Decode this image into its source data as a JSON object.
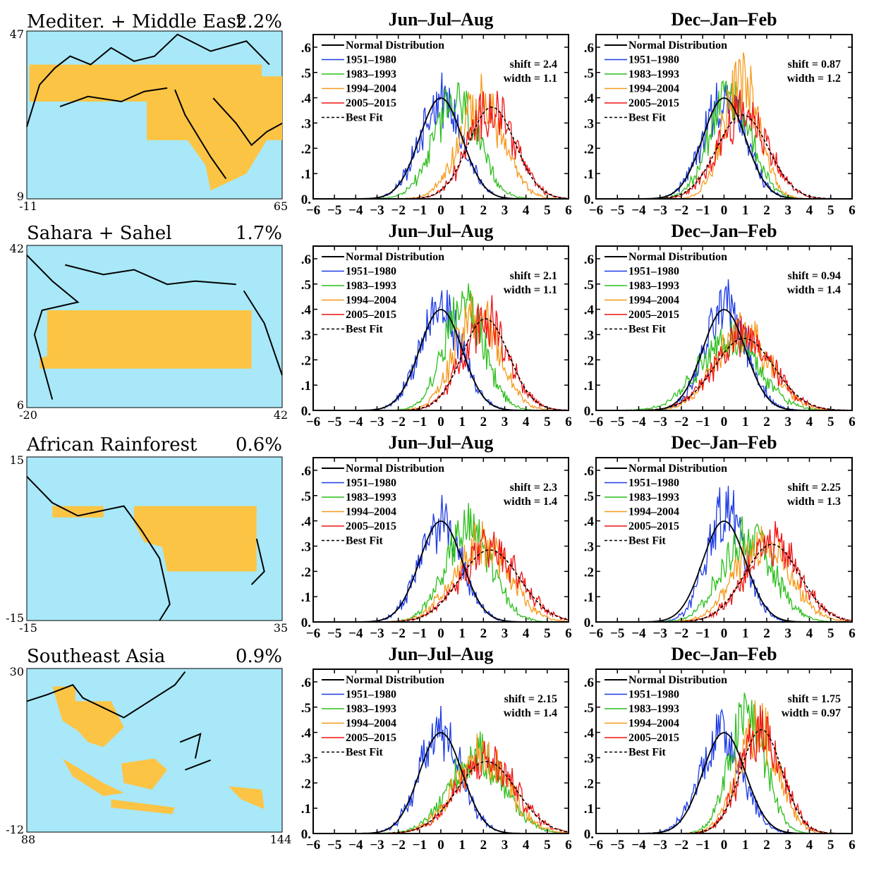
{
  "figure": {
    "colors": {
      "ocean": "#a8e8f8",
      "land_region": "#fcc444",
      "coast": "#000000",
      "normal": "#000000",
      "p1951": "#1e3ce6",
      "p1983": "#2cbf1c",
      "p1994": "#f59a1c",
      "p2005": "#f01414",
      "bestfit": "#000000"
    },
    "legend": [
      "Normal Distribution",
      "1951–1980",
      "1983–1993",
      "1994–2004",
      "2005–2015",
      "Best Fit"
    ],
    "x_ticks": [
      "−6",
      "−5",
      "−4",
      "−3",
      "−2",
      "−1",
      "0",
      "1",
      "2",
      "3",
      "4",
      "5",
      "6"
    ],
    "y_ticks": [
      "0.",
      ".1",
      ".2",
      ".3",
      ".4",
      ".5",
      ".6"
    ]
  },
  "regions": [
    {
      "name": "Mediter. + Middle East",
      "percent": "2.2%",
      "lat_top": "47",
      "lat_bottom": "9",
      "lon_left": "-11",
      "lon_right": "65",
      "panels": [
        {
          "title": "Jun–Jul–Aug",
          "shift_text": "shift = 2.4",
          "width_text": "width = 1.1"
        },
        {
          "title": "Dec–Jan–Feb",
          "shift_text": "shift = 0.87",
          "width_text": "width = 1.2"
        }
      ]
    },
    {
      "name": "Sahara + Sahel",
      "percent": "1.7%",
      "lat_top": "42",
      "lat_bottom": "6",
      "lon_left": "-20",
      "lon_right": "42",
      "panels": [
        {
          "title": "Jun–Jul–Aug",
          "shift_text": "shift = 2.1",
          "width_text": "width = 1.1"
        },
        {
          "title": "Dec–Jan–Feb",
          "shift_text": "shift = 0.94",
          "width_text": "width = 1.4"
        }
      ]
    },
    {
      "name": "African Rainforest",
      "percent": "0.6%",
      "lat_top": "15",
      "lat_bottom": "-15",
      "lon_left": "-15",
      "lon_right": "35",
      "panels": [
        {
          "title": "Jun–Jul–Aug",
          "shift_text": "shift = 2.3",
          "width_text": "width = 1.4"
        },
        {
          "title": "Dec–Jan–Feb",
          "shift_text": "shift = 2.25",
          "width_text": "width = 1.3"
        }
      ]
    },
    {
      "name": "Southeast Asia",
      "percent": "0.9%",
      "lat_top": "30",
      "lat_bottom": "-12",
      "lon_left": "88",
      "lon_right": "144",
      "panels": [
        {
          "title": "Jun–Jul–Aug",
          "shift_text": "shift = 2.15",
          "width_text": "width = 1.4"
        },
        {
          "title": "Dec–Jan–Feb",
          "shift_text": "shift = 1.75",
          "width_text": "width = 0.97"
        }
      ]
    }
  ],
  "chart_data": [
    {
      "type": "line",
      "region": "Mediter. + Middle East",
      "season": "Jun–Jul–Aug",
      "xlim": [
        -6,
        6
      ],
      "ylim": [
        0,
        0.65
      ],
      "series": [
        {
          "name": "Normal Distribution",
          "mean": 0,
          "sd": 1
        },
        {
          "name": "1951–1980",
          "mean": 0,
          "sd": 1
        },
        {
          "name": "1983–1993",
          "mean": 0.7,
          "sd": 1.05
        },
        {
          "name": "1994–2004",
          "mean": 1.9,
          "sd": 1.05
        },
        {
          "name": "2005–2015",
          "mean": 2.4,
          "sd": 1.1
        },
        {
          "name": "Best Fit",
          "mean": 2.4,
          "sd": 1.1
        }
      ]
    },
    {
      "type": "line",
      "region": "Mediter. + Middle East",
      "season": "Dec–Jan–Feb",
      "xlim": [
        -6,
        6
      ],
      "ylim": [
        0,
        0.65
      ],
      "series": [
        {
          "name": "Normal Distribution",
          "mean": 0,
          "sd": 1
        },
        {
          "name": "1951–1980",
          "mean": 0,
          "sd": 1
        },
        {
          "name": "1983–1993",
          "mean": 0.3,
          "sd": 1.0
        },
        {
          "name": "1994–2004",
          "mean": 0.8,
          "sd": 0.85
        },
        {
          "name": "2005–2015",
          "mean": 0.9,
          "sd": 1.15
        },
        {
          "name": "Best Fit",
          "mean": 0.87,
          "sd": 1.2
        }
      ]
    },
    {
      "type": "line",
      "region": "Sahara + Sahel",
      "season": "Jun–Jul–Aug",
      "xlim": [
        -6,
        6
      ],
      "ylim": [
        0,
        0.65
      ],
      "series": [
        {
          "name": "Normal Distribution",
          "mean": 0,
          "sd": 1
        },
        {
          "name": "1951–1980",
          "mean": 0,
          "sd": 1
        },
        {
          "name": "1983–1993",
          "mean": 1.1,
          "sd": 0.95
        },
        {
          "name": "1994–2004",
          "mean": 1.7,
          "sd": 1.05
        },
        {
          "name": "2005–2015",
          "mean": 2.1,
          "sd": 1.1
        },
        {
          "name": "Best Fit",
          "mean": 2.1,
          "sd": 1.1
        }
      ]
    },
    {
      "type": "line",
      "region": "Sahara + Sahel",
      "season": "Dec–Jan–Feb",
      "xlim": [
        -6,
        6
      ],
      "ylim": [
        0,
        0.65
      ],
      "series": [
        {
          "name": "Normal Distribution",
          "mean": 0,
          "sd": 1
        },
        {
          "name": "1951–1980",
          "mean": 0.1,
          "sd": 1
        },
        {
          "name": "1983–1993",
          "mean": 0.2,
          "sd": 1.4
        },
        {
          "name": "1994–2004",
          "mean": 0.9,
          "sd": 1.3
        },
        {
          "name": "2005–2015",
          "mean": 0.9,
          "sd": 1.4
        },
        {
          "name": "Best Fit",
          "mean": 0.94,
          "sd": 1.4
        }
      ]
    },
    {
      "type": "line",
      "region": "African Rainforest",
      "season": "Jun–Jul–Aug",
      "xlim": [
        -6,
        6
      ],
      "ylim": [
        0,
        0.65
      ],
      "series": [
        {
          "name": "Normal Distribution",
          "mean": 0,
          "sd": 1
        },
        {
          "name": "1951–1980",
          "mean": 0,
          "sd": 1
        },
        {
          "name": "1983–1993",
          "mean": 1.3,
          "sd": 1.1
        },
        {
          "name": "1994–2004",
          "mean": 1.9,
          "sd": 1.3
        },
        {
          "name": "2005–2015",
          "mean": 2.3,
          "sd": 1.4
        },
        {
          "name": "Best Fit",
          "mean": 2.3,
          "sd": 1.4
        }
      ]
    },
    {
      "type": "line",
      "region": "African Rainforest",
      "season": "Dec–Jan–Feb",
      "xlim": [
        -6,
        6
      ],
      "ylim": [
        0,
        0.65
      ],
      "series": [
        {
          "name": "Normal Distribution",
          "mean": 0,
          "sd": 1
        },
        {
          "name": "1951–1980",
          "mean": 0.1,
          "sd": 0.9
        },
        {
          "name": "1983–1993",
          "mean": 1.1,
          "sd": 1.2
        },
        {
          "name": "1994–2004",
          "mean": 1.8,
          "sd": 1.3
        },
        {
          "name": "2005–2015",
          "mean": 2.25,
          "sd": 1.3
        },
        {
          "name": "Best Fit",
          "mean": 2.25,
          "sd": 1.3
        }
      ]
    },
    {
      "type": "line",
      "region": "Southeast Asia",
      "season": "Jun–Jul–Aug",
      "xlim": [
        -6,
        6
      ],
      "ylim": [
        0,
        0.65
      ],
      "series": [
        {
          "name": "Normal Distribution",
          "mean": 0,
          "sd": 1
        },
        {
          "name": "1951–1980",
          "mean": 0,
          "sd": 1
        },
        {
          "name": "1983–1993",
          "mean": 1.7,
          "sd": 1.3
        },
        {
          "name": "1994–2004",
          "mean": 1.9,
          "sd": 1.3
        },
        {
          "name": "2005–2015",
          "mean": 2.15,
          "sd": 1.4
        },
        {
          "name": "Best Fit",
          "mean": 2.15,
          "sd": 1.4
        }
      ]
    },
    {
      "type": "line",
      "region": "Southeast Asia",
      "season": "Dec–Jan–Feb",
      "xlim": [
        -6,
        6
      ],
      "ylim": [
        0,
        0.65
      ],
      "series": [
        {
          "name": "Normal Distribution",
          "mean": 0,
          "sd": 1
        },
        {
          "name": "1951–1980",
          "mean": -0.1,
          "sd": 1
        },
        {
          "name": "1983–1993",
          "mean": 1.1,
          "sd": 0.85
        },
        {
          "name": "1994–2004",
          "mean": 1.6,
          "sd": 0.95
        },
        {
          "name": "2005–2015",
          "mean": 1.75,
          "sd": 0.97
        },
        {
          "name": "Best Fit",
          "mean": 1.75,
          "sd": 0.97
        }
      ]
    }
  ]
}
